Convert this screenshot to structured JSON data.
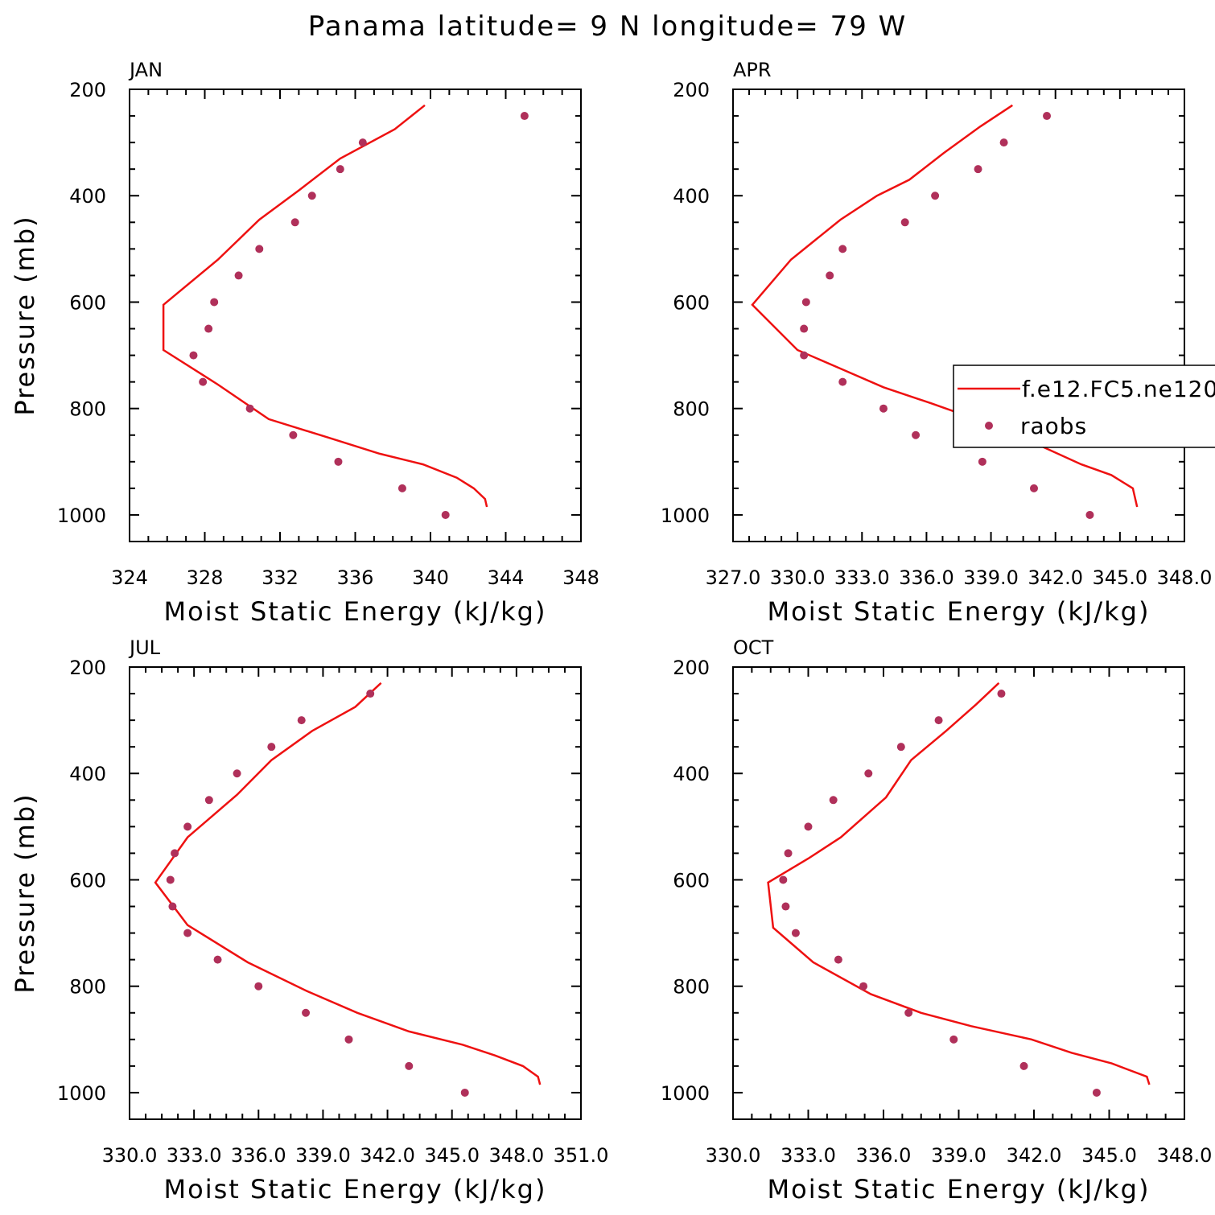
{
  "title": "Panama  latitude= 9 N longitude= 79 W",
  "colors": {
    "model": "#ee1111",
    "obs": "#b0305a",
    "axis": "#000000"
  },
  "legend": {
    "model_label": "f.e12.FC5.ne120",
    "obs_label": "raobs",
    "placement": "right-center of APR panel, clipped at figure edge"
  },
  "chart_data": [
    {
      "type": "line",
      "panel": "JAN",
      "xlabel": "Moist Static Energy (kJ/kg)",
      "ylabel": "Pressure (mb)",
      "xlim": [
        324,
        348
      ],
      "ylim": [
        1050,
        200
      ],
      "x_ticks": [
        "324",
        "328",
        "332",
        "336",
        "340",
        "344",
        "348"
      ],
      "y_ticks": [
        "200",
        "400",
        "600",
        "800",
        "1000"
      ],
      "series": [
        {
          "name": "f.e12.FC5.ne120",
          "style": "line",
          "x": [
            339.7,
            338.1,
            335.2,
            333.0,
            330.9,
            328.7,
            325.8,
            325.8,
            328.7,
            331.4,
            334.6,
            337.3,
            339.6,
            341.4,
            342.3,
            342.9,
            343.0
          ],
          "y": [
            230,
            275,
            330,
            390,
            445,
            520,
            605,
            690,
            755,
            820,
            855,
            885,
            905,
            930,
            950,
            970,
            985
          ]
        },
        {
          "name": "raobs",
          "style": "scatter",
          "x": [
            345.0,
            336.4,
            335.2,
            333.7,
            332.8,
            330.9,
            329.8,
            328.5,
            328.2,
            327.4,
            327.9,
            330.4,
            332.7,
            335.1,
            338.5,
            340.8
          ],
          "y": [
            250,
            300,
            350,
            400,
            450,
            500,
            550,
            600,
            650,
            700,
            750,
            800,
            850,
            900,
            950,
            1000
          ]
        }
      ]
    },
    {
      "type": "line",
      "panel": "APR",
      "xlabel": "Moist Static Energy (kJ/kg)",
      "ylabel": "",
      "xlim": [
        327.0,
        348.0
      ],
      "ylim": [
        1050,
        200
      ],
      "x_ticks": [
        "327.0",
        "330.0",
        "333.0",
        "336.0",
        "339.0",
        "342.0",
        "345.0",
        "348.0"
      ],
      "y_ticks": [
        "200",
        "400",
        "600",
        "800",
        "1000"
      ],
      "series": [
        {
          "name": "f.e12.FC5.ne120",
          "style": "line",
          "x": [
            340.0,
            338.5,
            336.8,
            335.2,
            333.7,
            332.0,
            329.7,
            327.9,
            330.0,
            332.0,
            334.0,
            336.2,
            339.0,
            341.3,
            343.2,
            344.6,
            345.6,
            345.8
          ],
          "y": [
            230,
            270,
            320,
            370,
            400,
            445,
            520,
            605,
            690,
            725,
            760,
            790,
            830,
            870,
            905,
            925,
            950,
            985
          ]
        },
        {
          "name": "raobs",
          "style": "scatter",
          "x": [
            341.6,
            339.6,
            338.4,
            336.4,
            335.0,
            332.1,
            331.5,
            330.4,
            330.3,
            330.3,
            332.1,
            334.0,
            335.5,
            338.6,
            341.0,
            343.6
          ],
          "y": [
            250,
            300,
            350,
            400,
            450,
            500,
            550,
            600,
            650,
            700,
            750,
            800,
            850,
            900,
            950,
            1000
          ]
        }
      ]
    },
    {
      "type": "line",
      "panel": "JUL",
      "xlabel": "Moist Static Energy (kJ/kg)",
      "ylabel": "Pressure (mb)",
      "xlim": [
        330.0,
        351.0
      ],
      "ylim": [
        1050,
        200
      ],
      "x_ticks": [
        "330.0",
        "333.0",
        "336.0",
        "339.0",
        "342.0",
        "345.0",
        "348.0",
        "351.0"
      ],
      "y_ticks": [
        "200",
        "400",
        "600",
        "800",
        "1000"
      ],
      "series": [
        {
          "name": "f.e12.FC5.ne120",
          "style": "line",
          "x": [
            341.7,
            340.5,
            338.5,
            336.6,
            335.0,
            332.7,
            331.2,
            332.7,
            335.5,
            338.3,
            340.6,
            343.0,
            345.5,
            347.0,
            348.3,
            349.0,
            349.1
          ],
          "y": [
            230,
            275,
            320,
            375,
            440,
            520,
            605,
            685,
            755,
            810,
            850,
            885,
            910,
            930,
            950,
            970,
            985
          ]
        },
        {
          "name": "raobs",
          "style": "scatter",
          "x": [
            341.2,
            338.0,
            336.6,
            335.0,
            333.7,
            332.7,
            332.1,
            331.9,
            332.0,
            332.7,
            334.1,
            336.0,
            338.2,
            340.2,
            343.0,
            345.6
          ],
          "y": [
            250,
            300,
            350,
            400,
            450,
            500,
            550,
            600,
            650,
            700,
            750,
            800,
            850,
            900,
            950,
            1000
          ]
        }
      ]
    },
    {
      "type": "line",
      "panel": "OCT",
      "xlabel": "Moist Static Energy (kJ/kg)",
      "ylabel": "",
      "xlim": [
        330.0,
        348.0
      ],
      "ylim": [
        1050,
        200
      ],
      "x_ticks": [
        "330.0",
        "333.0",
        "336.0",
        "339.0",
        "342.0",
        "345.0",
        "348.0"
      ],
      "y_ticks": [
        "200",
        "400",
        "600",
        "800",
        "1000"
      ],
      "series": [
        {
          "name": "f.e12.FC5.ne120",
          "style": "line",
          "x": [
            340.6,
            339.7,
            338.5,
            337.1,
            336.1,
            334.3,
            333.0,
            331.4,
            331.6,
            333.2,
            335.5,
            337.5,
            339.5,
            341.9,
            343.5,
            345.1,
            346.5,
            346.6
          ],
          "y": [
            230,
            270,
            320,
            375,
            445,
            520,
            560,
            605,
            690,
            755,
            815,
            850,
            875,
            900,
            925,
            945,
            970,
            985
          ]
        },
        {
          "name": "raobs",
          "style": "scatter",
          "x": [
            340.7,
            338.2,
            336.7,
            335.4,
            334.0,
            333.0,
            332.2,
            332.0,
            332.1,
            332.5,
            334.2,
            335.2,
            337.0,
            338.8,
            341.6,
            344.5
          ],
          "y": [
            250,
            300,
            350,
            400,
            450,
            500,
            550,
            600,
            650,
            700,
            750,
            800,
            850,
            900,
            950,
            1000
          ]
        }
      ]
    }
  ]
}
